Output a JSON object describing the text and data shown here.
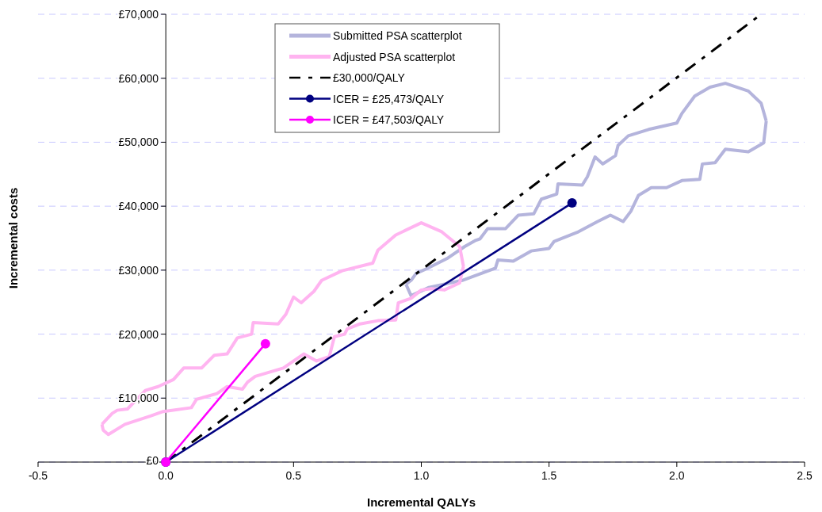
{
  "chart_data": {
    "type": "line",
    "xlabel": "Incremental QALYs",
    "ylabel": "Incremental costs",
    "xlim": [
      -0.5,
      2.5
    ],
    "ylim": [
      0,
      70000
    ],
    "xticks": [
      {
        "value": -0.5,
        "label": "-0.5"
      },
      {
        "value": 0,
        "label": "0.0"
      },
      {
        "value": 0.5,
        "label": "0.5"
      },
      {
        "value": 1,
        "label": "1.0"
      },
      {
        "value": 1.5,
        "label": "1.5"
      },
      {
        "value": 2,
        "label": "2.0"
      },
      {
        "value": 2.5,
        "label": "2.5"
      }
    ],
    "yticks": [
      {
        "value": 0,
        "label": "£0"
      },
      {
        "value": 10000,
        "label": "£10,000"
      },
      {
        "value": 20000,
        "label": "£20,000"
      },
      {
        "value": 30000,
        "label": "£30,000"
      },
      {
        "value": 40000,
        "label": "£40,000"
      },
      {
        "value": 50000,
        "label": "£50,000"
      },
      {
        "value": 60000,
        "label": "£60,000"
      },
      {
        "value": 70000,
        "label": "£70,000"
      }
    ],
    "grid": "y",
    "legend": "top",
    "series": [
      {
        "name": "Submitted PSA scatterplot",
        "color": "#b4b4dc",
        "marker": "none",
        "x": [
          0.94,
          0.96,
          1.03,
          1.16,
          1.29,
          1.3,
          1.36,
          1.43,
          1.5,
          1.52,
          1.61,
          1.69,
          1.74,
          1.79,
          1.82,
          1.85,
          1.9,
          1.96,
          2.02,
          2.09,
          2.1,
          2.15,
          2.19,
          2.28,
          2.34,
          2.35,
          null,
          0.94,
          0.96,
          0.98,
          1.02,
          1.1,
          1.17,
          1.21,
          1.23,
          1.26,
          1.33,
          1.38,
          1.44,
          1.47,
          1.53,
          1.535,
          1.63,
          1.65,
          1.68,
          1.71,
          1.76,
          1.77,
          1.81,
          1.89,
          2.0,
          2.02,
          2.07,
          2.13,
          2.19,
          2.28,
          2.33,
          2.35
        ],
        "values": [
          27800,
          26000,
          27300,
          28400,
          30300,
          31600,
          31400,
          33000,
          33400,
          34500,
          35900,
          37600,
          38600,
          37600,
          39200,
          41700,
          42900,
          42900,
          44000,
          44200,
          46600,
          46800,
          48900,
          48500,
          49900,
          53300,
          null,
          27800,
          28400,
          29500,
          30200,
          31800,
          33700,
          34600,
          34900,
          36500,
          36500,
          38600,
          38800,
          41100,
          41900,
          43500,
          43300,
          44600,
          47700,
          46600,
          47900,
          49500,
          51000,
          52000,
          53000,
          54500,
          57200,
          58600,
          59200,
          58000,
          56100,
          53300
        ]
      },
      {
        "name": "Adjusted PSA scatterplot",
        "color": "#ffb4f0",
        "marker": "none",
        "x": [
          -0.25,
          -0.21,
          -0.19,
          -0.15,
          -0.08,
          -0.03,
          0.03,
          0.07,
          0.14,
          0.19,
          0.24,
          0.28,
          0.336,
          0.342,
          0.44,
          0.47,
          0.5,
          0.53,
          0.58,
          0.61,
          0.69,
          0.81,
          0.83,
          0.9,
          1.0,
          1.08,
          1.15,
          1.165,
          null,
          -0.25,
          -0.245,
          -0.225,
          -0.16,
          -0.06,
          -0.01,
          0.1,
          0.12,
          0.2,
          0.24,
          0.3,
          0.32,
          0.35,
          0.46,
          0.54,
          0.59,
          0.64,
          0.66,
          0.7,
          0.71,
          0.76,
          0.83,
          0.9,
          0.91,
          0.96,
          1.0,
          1.04,
          1.09,
          1.15,
          1.165
        ],
        "values": [
          5900,
          7600,
          8100,
          8300,
          11200,
          11800,
          12900,
          14700,
          14700,
          16700,
          16900,
          19400,
          20000,
          21800,
          21600,
          23100,
          25800,
          24900,
          26700,
          28400,
          29900,
          31100,
          33100,
          35500,
          37400,
          36000,
          33700,
          30600,
          null,
          5900,
          5000,
          4300,
          5900,
          7200,
          7900,
          8500,
          9800,
          10700,
          11800,
          11400,
          12500,
          13400,
          14700,
          16900,
          15800,
          16500,
          19600,
          20000,
          20800,
          21600,
          22100,
          22200,
          24900,
          25600,
          26900,
          27100,
          26900,
          28000,
          30600
        ]
      },
      {
        "name": "£30,000/QALY",
        "color": "#000000",
        "marker": "none",
        "line_style": "dashed",
        "x": [
          0,
          2.33
        ],
        "values": [
          0,
          70000
        ]
      },
      {
        "name": "ICER = £25,473/QALY",
        "color": "#000080",
        "marker": "circle",
        "x": [
          0,
          1.59
        ],
        "values": [
          0,
          40500
        ]
      },
      {
        "name": "ICER = £47,503/QALY",
        "color": "#ff00ff",
        "marker": "circle",
        "x": [
          0,
          0.39
        ],
        "values": [
          0,
          18500
        ]
      }
    ]
  }
}
